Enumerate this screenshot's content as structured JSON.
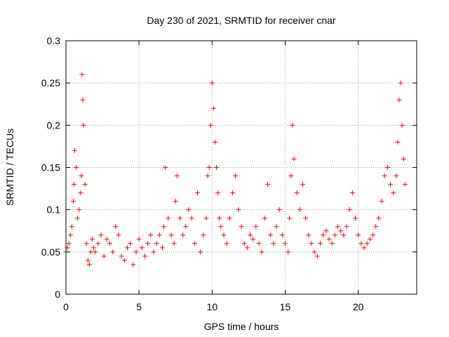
{
  "chart_data": {
    "type": "scatter",
    "title": "Day 230 of 2021, SRMTID for receiver cnar",
    "xlabel": "GPS time / hours",
    "ylabel": "SRMTID / TECUs",
    "xlim": [
      0,
      24
    ],
    "ylim": [
      0,
      0.3
    ],
    "x_ticks": [
      0,
      5,
      10,
      15,
      20
    ],
    "y_ticks": [
      0,
      0.05,
      0.1,
      0.15,
      0.2,
      0.25,
      0.3
    ],
    "x_tick_labels": [
      "0",
      "5",
      "10",
      "15",
      "20"
    ],
    "y_tick_labels": [
      "0",
      "0.05",
      "0.1",
      "0.15",
      "0.2",
      "0.25",
      "0.3"
    ],
    "grid": true,
    "marker": "plus",
    "color": "#ff0000",
    "series": [
      {
        "name": "SRMTID",
        "x": [
          0.0,
          0.1,
          0.2,
          0.3,
          0.4,
          0.5,
          0.55,
          0.6,
          0.7,
          0.8,
          0.9,
          1.0,
          1.05,
          1.1,
          1.15,
          1.2,
          1.3,
          1.4,
          1.5,
          1.6,
          1.7,
          1.8,
          1.9,
          2.0,
          2.2,
          2.4,
          2.6,
          2.8,
          3.0,
          3.2,
          3.4,
          3.6,
          3.8,
          4.0,
          4.2,
          4.4,
          4.6,
          4.8,
          5.0,
          5.2,
          5.4,
          5.6,
          5.8,
          6.0,
          6.2,
          6.4,
          6.6,
          6.7,
          6.8,
          7.0,
          7.2,
          7.4,
          7.5,
          7.6,
          7.8,
          8.0,
          8.2,
          8.4,
          8.6,
          8.8,
          9.0,
          9.2,
          9.4,
          9.6,
          9.7,
          9.8,
          9.9,
          10.0,
          10.1,
          10.2,
          10.3,
          10.4,
          10.5,
          10.6,
          10.8,
          11.0,
          11.2,
          11.4,
          11.6,
          11.8,
          12.0,
          12.2,
          12.4,
          12.6,
          12.8,
          13.0,
          13.2,
          13.4,
          13.6,
          13.8,
          14.0,
          14.2,
          14.4,
          14.6,
          14.8,
          15.0,
          15.2,
          15.3,
          15.4,
          15.5,
          15.6,
          15.8,
          16.0,
          16.2,
          16.4,
          16.6,
          16.8,
          17.0,
          17.2,
          17.4,
          17.6,
          17.8,
          18.0,
          18.2,
          18.4,
          18.6,
          18.8,
          19.0,
          19.2,
          19.4,
          19.6,
          19.8,
          20.0,
          20.2,
          20.4,
          20.6,
          20.8,
          21.0,
          21.2,
          21.4,
          21.6,
          21.8,
          22.0,
          22.2,
          22.4,
          22.6,
          22.7,
          22.8,
          22.9,
          23.0,
          23.1,
          23.2
        ],
        "y": [
          0.05,
          0.055,
          0.06,
          0.07,
          0.08,
          0.11,
          0.13,
          0.17,
          0.15,
          0.09,
          0.1,
          0.12,
          0.14,
          0.26,
          0.23,
          0.2,
          0.13,
          0.06,
          0.04,
          0.035,
          0.05,
          0.065,
          0.055,
          0.05,
          0.06,
          0.07,
          0.045,
          0.065,
          0.06,
          0.05,
          0.08,
          0.07,
          0.045,
          0.04,
          0.055,
          0.06,
          0.035,
          0.05,
          0.065,
          0.055,
          0.045,
          0.06,
          0.07,
          0.05,
          0.06,
          0.07,
          0.055,
          0.08,
          0.15,
          0.09,
          0.07,
          0.06,
          0.11,
          0.14,
          0.09,
          0.07,
          0.08,
          0.1,
          0.09,
          0.06,
          0.12,
          0.05,
          0.07,
          0.09,
          0.14,
          0.15,
          0.2,
          0.25,
          0.22,
          0.18,
          0.15,
          0.12,
          0.09,
          0.08,
          0.07,
          0.06,
          0.09,
          0.12,
          0.14,
          0.1,
          0.08,
          0.06,
          0.055,
          0.07,
          0.065,
          0.08,
          0.06,
          0.05,
          0.09,
          0.13,
          0.07,
          0.06,
          0.08,
          0.1,
          0.07,
          0.06,
          0.05,
          0.09,
          0.14,
          0.2,
          0.16,
          0.12,
          0.1,
          0.13,
          0.09,
          0.07,
          0.06,
          0.05,
          0.045,
          0.06,
          0.07,
          0.075,
          0.065,
          0.06,
          0.07,
          0.08,
          0.075,
          0.07,
          0.08,
          0.1,
          0.12,
          0.09,
          0.07,
          0.06,
          0.055,
          0.06,
          0.065,
          0.07,
          0.08,
          0.09,
          0.11,
          0.14,
          0.15,
          0.13,
          0.12,
          0.14,
          0.18,
          0.23,
          0.25,
          0.2,
          0.16,
          0.13
        ]
      }
    ]
  }
}
